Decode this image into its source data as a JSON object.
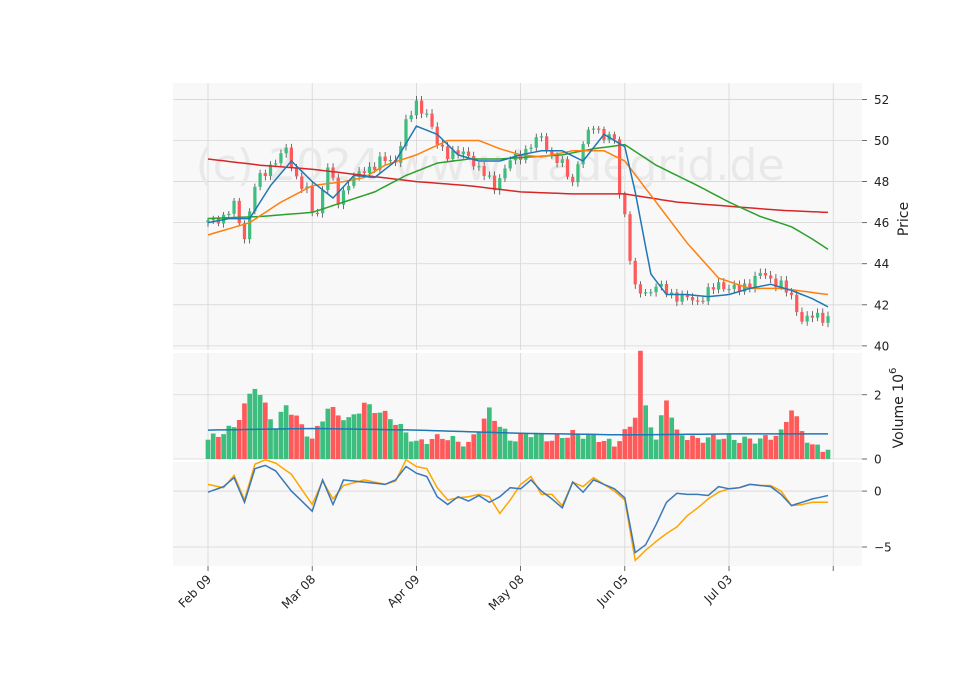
{
  "watermark": "(c) 2024 www.tradegrid.de",
  "price_panel": {
    "ylabel": "Price",
    "ylim": [
      39.8,
      52.8
    ],
    "yticks": [
      "40",
      "42",
      "44",
      "46",
      "48",
      "50",
      "52"
    ]
  },
  "volume_panel": {
    "ylabel": "Volume  10",
    "ylabel_exponent": "6",
    "ylim": [
      0,
      3.3
    ],
    "yticks": [
      "0",
      "2"
    ]
  },
  "oscillator_panel": {
    "ylim": [
      -6.7,
      2.6
    ],
    "yticks": [
      "0",
      "−5"
    ]
  },
  "xaxis": {
    "tick_labels": [
      "Feb 09",
      "Mar 08",
      "Apr 09",
      "May 08",
      "Jun 05",
      "Jul 03"
    ],
    "tick_index": [
      0,
      20,
      40,
      60,
      80,
      100,
      120
    ]
  },
  "colors": {
    "up": "#3dbe7e",
    "down": "#ff5a5a",
    "ma_fast": "#1f77b4",
    "ma_mid": "#ff7f0e",
    "ma_long": "#2ca02c",
    "ma_200": "#d62728",
    "volume_ma": "#1f77b4",
    "osc_line": "#3a78b8",
    "osc_signal": "#ffa500",
    "panel_bg": "#f8f8f8",
    "grid": "#d6d6d6"
  },
  "chart_data": [
    {
      "type": "candlestick",
      "panel": "price",
      "n_bars": 120,
      "close_keypoints": [
        [
          0,
          46.0
        ],
        [
          3,
          46.3
        ],
        [
          5,
          46.8
        ],
        [
          7,
          45.3
        ],
        [
          9,
          47.8
        ],
        [
          12,
          48.8
        ],
        [
          15,
          49.5
        ],
        [
          17,
          48.2
        ],
        [
          19,
          47.5
        ],
        [
          20,
          46.5
        ],
        [
          21,
          46.5
        ],
        [
          23,
          48.8
        ],
        [
          25,
          47.0
        ],
        [
          27,
          48.0
        ],
        [
          30,
          48.5
        ],
        [
          33,
          49.0
        ],
        [
          36,
          49.0
        ],
        [
          38,
          50.8
        ],
        [
          40,
          51.8
        ],
        [
          42,
          51.3
        ],
        [
          44,
          49.8
        ],
        [
          46,
          49.4
        ],
        [
          50,
          49.3
        ],
        [
          52,
          48.6
        ],
        [
          55,
          47.8
        ],
        [
          58,
          49.0
        ],
        [
          61,
          49.5
        ],
        [
          64,
          50.2
        ],
        [
          66,
          49.2
        ],
        [
          68,
          48.8
        ],
        [
          70,
          48.0
        ],
        [
          72,
          49.8
        ],
        [
          74,
          50.8
        ],
        [
          76,
          50.2
        ],
        [
          78,
          50.0
        ],
        [
          79,
          47.5
        ],
        [
          80,
          46.4
        ],
        [
          81,
          44.3
        ],
        [
          82,
          42.7
        ],
        [
          84,
          42.6
        ],
        [
          86,
          42.9
        ],
        [
          90,
          42.4
        ],
        [
          94,
          42.2
        ],
        [
          98,
          43.0
        ],
        [
          102,
          42.7
        ],
        [
          106,
          43.5
        ],
        [
          110,
          43.0
        ],
        [
          112,
          42.3
        ],
        [
          114,
          41.3
        ],
        [
          116,
          41.4
        ],
        [
          119,
          41.4
        ]
      ],
      "ma_fast_keypoints": [
        [
          0,
          46.0
        ],
        [
          4,
          46.2
        ],
        [
          8,
          46.2
        ],
        [
          12,
          47.8
        ],
        [
          16,
          49.0
        ],
        [
          20,
          48.0
        ],
        [
          24,
          47.2
        ],
        [
          28,
          48.3
        ],
        [
          32,
          48.2
        ],
        [
          36,
          49.0
        ],
        [
          40,
          50.7
        ],
        [
          44,
          50.3
        ],
        [
          48,
          49.3
        ],
        [
          52,
          49.0
        ],
        [
          56,
          49.0
        ],
        [
          60,
          49.3
        ],
        [
          64,
          49.5
        ],
        [
          68,
          49.5
        ],
        [
          72,
          49.0
        ],
        [
          76,
          50.3
        ],
        [
          80,
          49.7
        ],
        [
          82,
          47.5
        ],
        [
          85,
          43.5
        ],
        [
          88,
          42.5
        ],
        [
          92,
          42.5
        ],
        [
          96,
          42.4
        ],
        [
          100,
          42.5
        ],
        [
          104,
          42.8
        ],
        [
          108,
          43.0
        ],
        [
          112,
          42.7
        ],
        [
          116,
          42.3
        ],
        [
          119,
          41.9
        ]
      ],
      "ma_mid_keypoints": [
        [
          0,
          45.4
        ],
        [
          8,
          46.0
        ],
        [
          14,
          47.0
        ],
        [
          20,
          47.8
        ],
        [
          26,
          48.0
        ],
        [
          30,
          48.2
        ],
        [
          34,
          48.8
        ],
        [
          40,
          49.3
        ],
        [
          46,
          50.0
        ],
        [
          52,
          50.0
        ],
        [
          56,
          49.6
        ],
        [
          60,
          49.3
        ],
        [
          64,
          49.2
        ],
        [
          70,
          49.5
        ],
        [
          76,
          49.5
        ],
        [
          80,
          49.0
        ],
        [
          86,
          47.0
        ],
        [
          92,
          45.0
        ],
        [
          98,
          43.3
        ],
        [
          104,
          42.8
        ],
        [
          110,
          42.8
        ],
        [
          116,
          42.6
        ],
        [
          119,
          42.5
        ]
      ],
      "ma_long_keypoints": [
        [
          0,
          46.2
        ],
        [
          10,
          46.3
        ],
        [
          20,
          46.5
        ],
        [
          26,
          47.0
        ],
        [
          32,
          47.5
        ],
        [
          38,
          48.3
        ],
        [
          44,
          48.9
        ],
        [
          50,
          49.1
        ],
        [
          56,
          49.1
        ],
        [
          62,
          49.2
        ],
        [
          68,
          49.3
        ],
        [
          74,
          49.6
        ],
        [
          80,
          49.8
        ],
        [
          86,
          48.8
        ],
        [
          94,
          47.8
        ],
        [
          100,
          47.0
        ],
        [
          106,
          46.3
        ],
        [
          112,
          45.8
        ],
        [
          116,
          45.2
        ],
        [
          119,
          44.7
        ]
      ],
      "ma_200_keypoints": [
        [
          0,
          49.1
        ],
        [
          10,
          48.8
        ],
        [
          20,
          48.6
        ],
        [
          30,
          48.3
        ],
        [
          40,
          48.0
        ],
        [
          50,
          47.8
        ],
        [
          60,
          47.5
        ],
        [
          70,
          47.4
        ],
        [
          80,
          47.4
        ],
        [
          90,
          47.0
        ],
        [
          100,
          46.8
        ],
        [
          110,
          46.6
        ],
        [
          119,
          46.5
        ]
      ]
    },
    {
      "type": "bar",
      "panel": "volume",
      "units": "millions",
      "volume_keypoints": [
        [
          0,
          0.6
        ],
        [
          5,
          1.0
        ],
        [
          9,
          2.3
        ],
        [
          13,
          1.0
        ],
        [
          15,
          1.7
        ],
        [
          20,
          0.6
        ],
        [
          23,
          1.6
        ],
        [
          27,
          1.2
        ],
        [
          30,
          1.7
        ],
        [
          35,
          1.3
        ],
        [
          40,
          0.5
        ],
        [
          45,
          0.7
        ],
        [
          50,
          0.45
        ],
        [
          54,
          1.5
        ],
        [
          58,
          0.6
        ],
        [
          62,
          0.8
        ],
        [
          66,
          0.6
        ],
        [
          70,
          0.8
        ],
        [
          74,
          0.7
        ],
        [
          78,
          0.45
        ],
        [
          81,
          1.0
        ],
        [
          82,
          1.4
        ],
        [
          83,
          3.3
        ],
        [
          84,
          1.6
        ],
        [
          86,
          0.6
        ],
        [
          88,
          1.9
        ],
        [
          90,
          0.8
        ],
        [
          94,
          0.6
        ],
        [
          98,
          0.7
        ],
        [
          102,
          0.6
        ],
        [
          106,
          0.6
        ],
        [
          110,
          0.8
        ],
        [
          112,
          1.6
        ],
        [
          114,
          0.85
        ],
        [
          116,
          0.4
        ],
        [
          119,
          0.3
        ]
      ],
      "volume_ma_keypoints": [
        [
          0,
          0.9
        ],
        [
          20,
          0.95
        ],
        [
          40,
          0.9
        ],
        [
          60,
          0.8
        ],
        [
          80,
          0.75
        ],
        [
          100,
          0.78
        ],
        [
          119,
          0.78
        ]
      ]
    },
    {
      "type": "line",
      "panel": "oscillator",
      "line_keypoints": [
        [
          0,
          -0.1
        ],
        [
          3,
          0.4
        ],
        [
          5,
          1.2
        ],
        [
          7,
          -1.0
        ],
        [
          9,
          2.0
        ],
        [
          11,
          2.3
        ],
        [
          13,
          1.8
        ],
        [
          16,
          0.0
        ],
        [
          20,
          -1.8
        ],
        [
          22,
          1.0
        ],
        [
          24,
          -1.2
        ],
        [
          26,
          1.0
        ],
        [
          30,
          0.8
        ],
        [
          34,
          0.6
        ],
        [
          36,
          1.0
        ],
        [
          38,
          2.2
        ],
        [
          40,
          1.6
        ],
        [
          42,
          1.3
        ],
        [
          44,
          -0.5
        ],
        [
          46,
          -1.2
        ],
        [
          48,
          -0.5
        ],
        [
          50,
          -0.9
        ],
        [
          52,
          -0.4
        ],
        [
          54,
          -1.0
        ],
        [
          56,
          -0.5
        ],
        [
          58,
          0.3
        ],
        [
          60,
          0.2
        ],
        [
          62,
          1.0
        ],
        [
          64,
          0.0
        ],
        [
          66,
          -0.7
        ],
        [
          68,
          -1.5
        ],
        [
          70,
          0.8
        ],
        [
          72,
          -0.1
        ],
        [
          74,
          1.0
        ],
        [
          76,
          0.6
        ],
        [
          78,
          0.2
        ],
        [
          80,
          -0.6
        ],
        [
          82,
          -5.5
        ],
        [
          84,
          -4.8
        ],
        [
          86,
          -3.0
        ],
        [
          88,
          -1.0
        ],
        [
          90,
          -0.2
        ],
        [
          92,
          -0.3
        ],
        [
          94,
          -0.3
        ],
        [
          96,
          -0.4
        ],
        [
          98,
          0.4
        ],
        [
          100,
          0.2
        ],
        [
          102,
          0.3
        ],
        [
          104,
          0.6
        ],
        [
          106,
          0.5
        ],
        [
          108,
          0.4
        ],
        [
          110,
          -0.3
        ],
        [
          112,
          -1.3
        ],
        [
          114,
          -1.0
        ],
        [
          116,
          -0.7
        ],
        [
          119,
          -0.4
        ]
      ],
      "signal_keypoints": [
        [
          0,
          0.6
        ],
        [
          3,
          0.3
        ],
        [
          5,
          1.4
        ],
        [
          7,
          -0.8
        ],
        [
          9,
          2.4
        ],
        [
          11,
          2.8
        ],
        [
          13,
          2.5
        ],
        [
          16,
          1.5
        ],
        [
          20,
          -1.2
        ],
        [
          22,
          0.9
        ],
        [
          24,
          -0.7
        ],
        [
          26,
          0.5
        ],
        [
          30,
          1.0
        ],
        [
          34,
          0.6
        ],
        [
          36,
          0.9
        ],
        [
          38,
          2.8
        ],
        [
          40,
          2.2
        ],
        [
          42,
          2.0
        ],
        [
          44,
          0.3
        ],
        [
          46,
          -0.8
        ],
        [
          48,
          -0.6
        ],
        [
          50,
          -0.5
        ],
        [
          52,
          -0.3
        ],
        [
          54,
          -0.5
        ],
        [
          56,
          -2.0
        ],
        [
          58,
          -0.8
        ],
        [
          60,
          0.6
        ],
        [
          62,
          1.3
        ],
        [
          64,
          -0.3
        ],
        [
          66,
          -0.3
        ],
        [
          68,
          -1.3
        ],
        [
          70,
          0.8
        ],
        [
          72,
          0.4
        ],
        [
          74,
          1.2
        ],
        [
          76,
          0.6
        ],
        [
          78,
          0.0
        ],
        [
          80,
          -0.8
        ],
        [
          82,
          -6.2
        ],
        [
          84,
          -5.3
        ],
        [
          86,
          -4.5
        ],
        [
          88,
          -3.8
        ],
        [
          90,
          -3.2
        ],
        [
          92,
          -2.2
        ],
        [
          94,
          -1.5
        ],
        [
          96,
          -0.7
        ],
        [
          98,
          -0.1
        ],
        [
          100,
          0.2
        ],
        [
          102,
          0.3
        ],
        [
          104,
          0.6
        ],
        [
          106,
          0.5
        ],
        [
          108,
          0.5
        ],
        [
          110,
          0.0
        ],
        [
          112,
          -1.3
        ],
        [
          114,
          -1.2
        ],
        [
          116,
          -1.0
        ],
        [
          119,
          -1.0
        ]
      ]
    }
  ]
}
